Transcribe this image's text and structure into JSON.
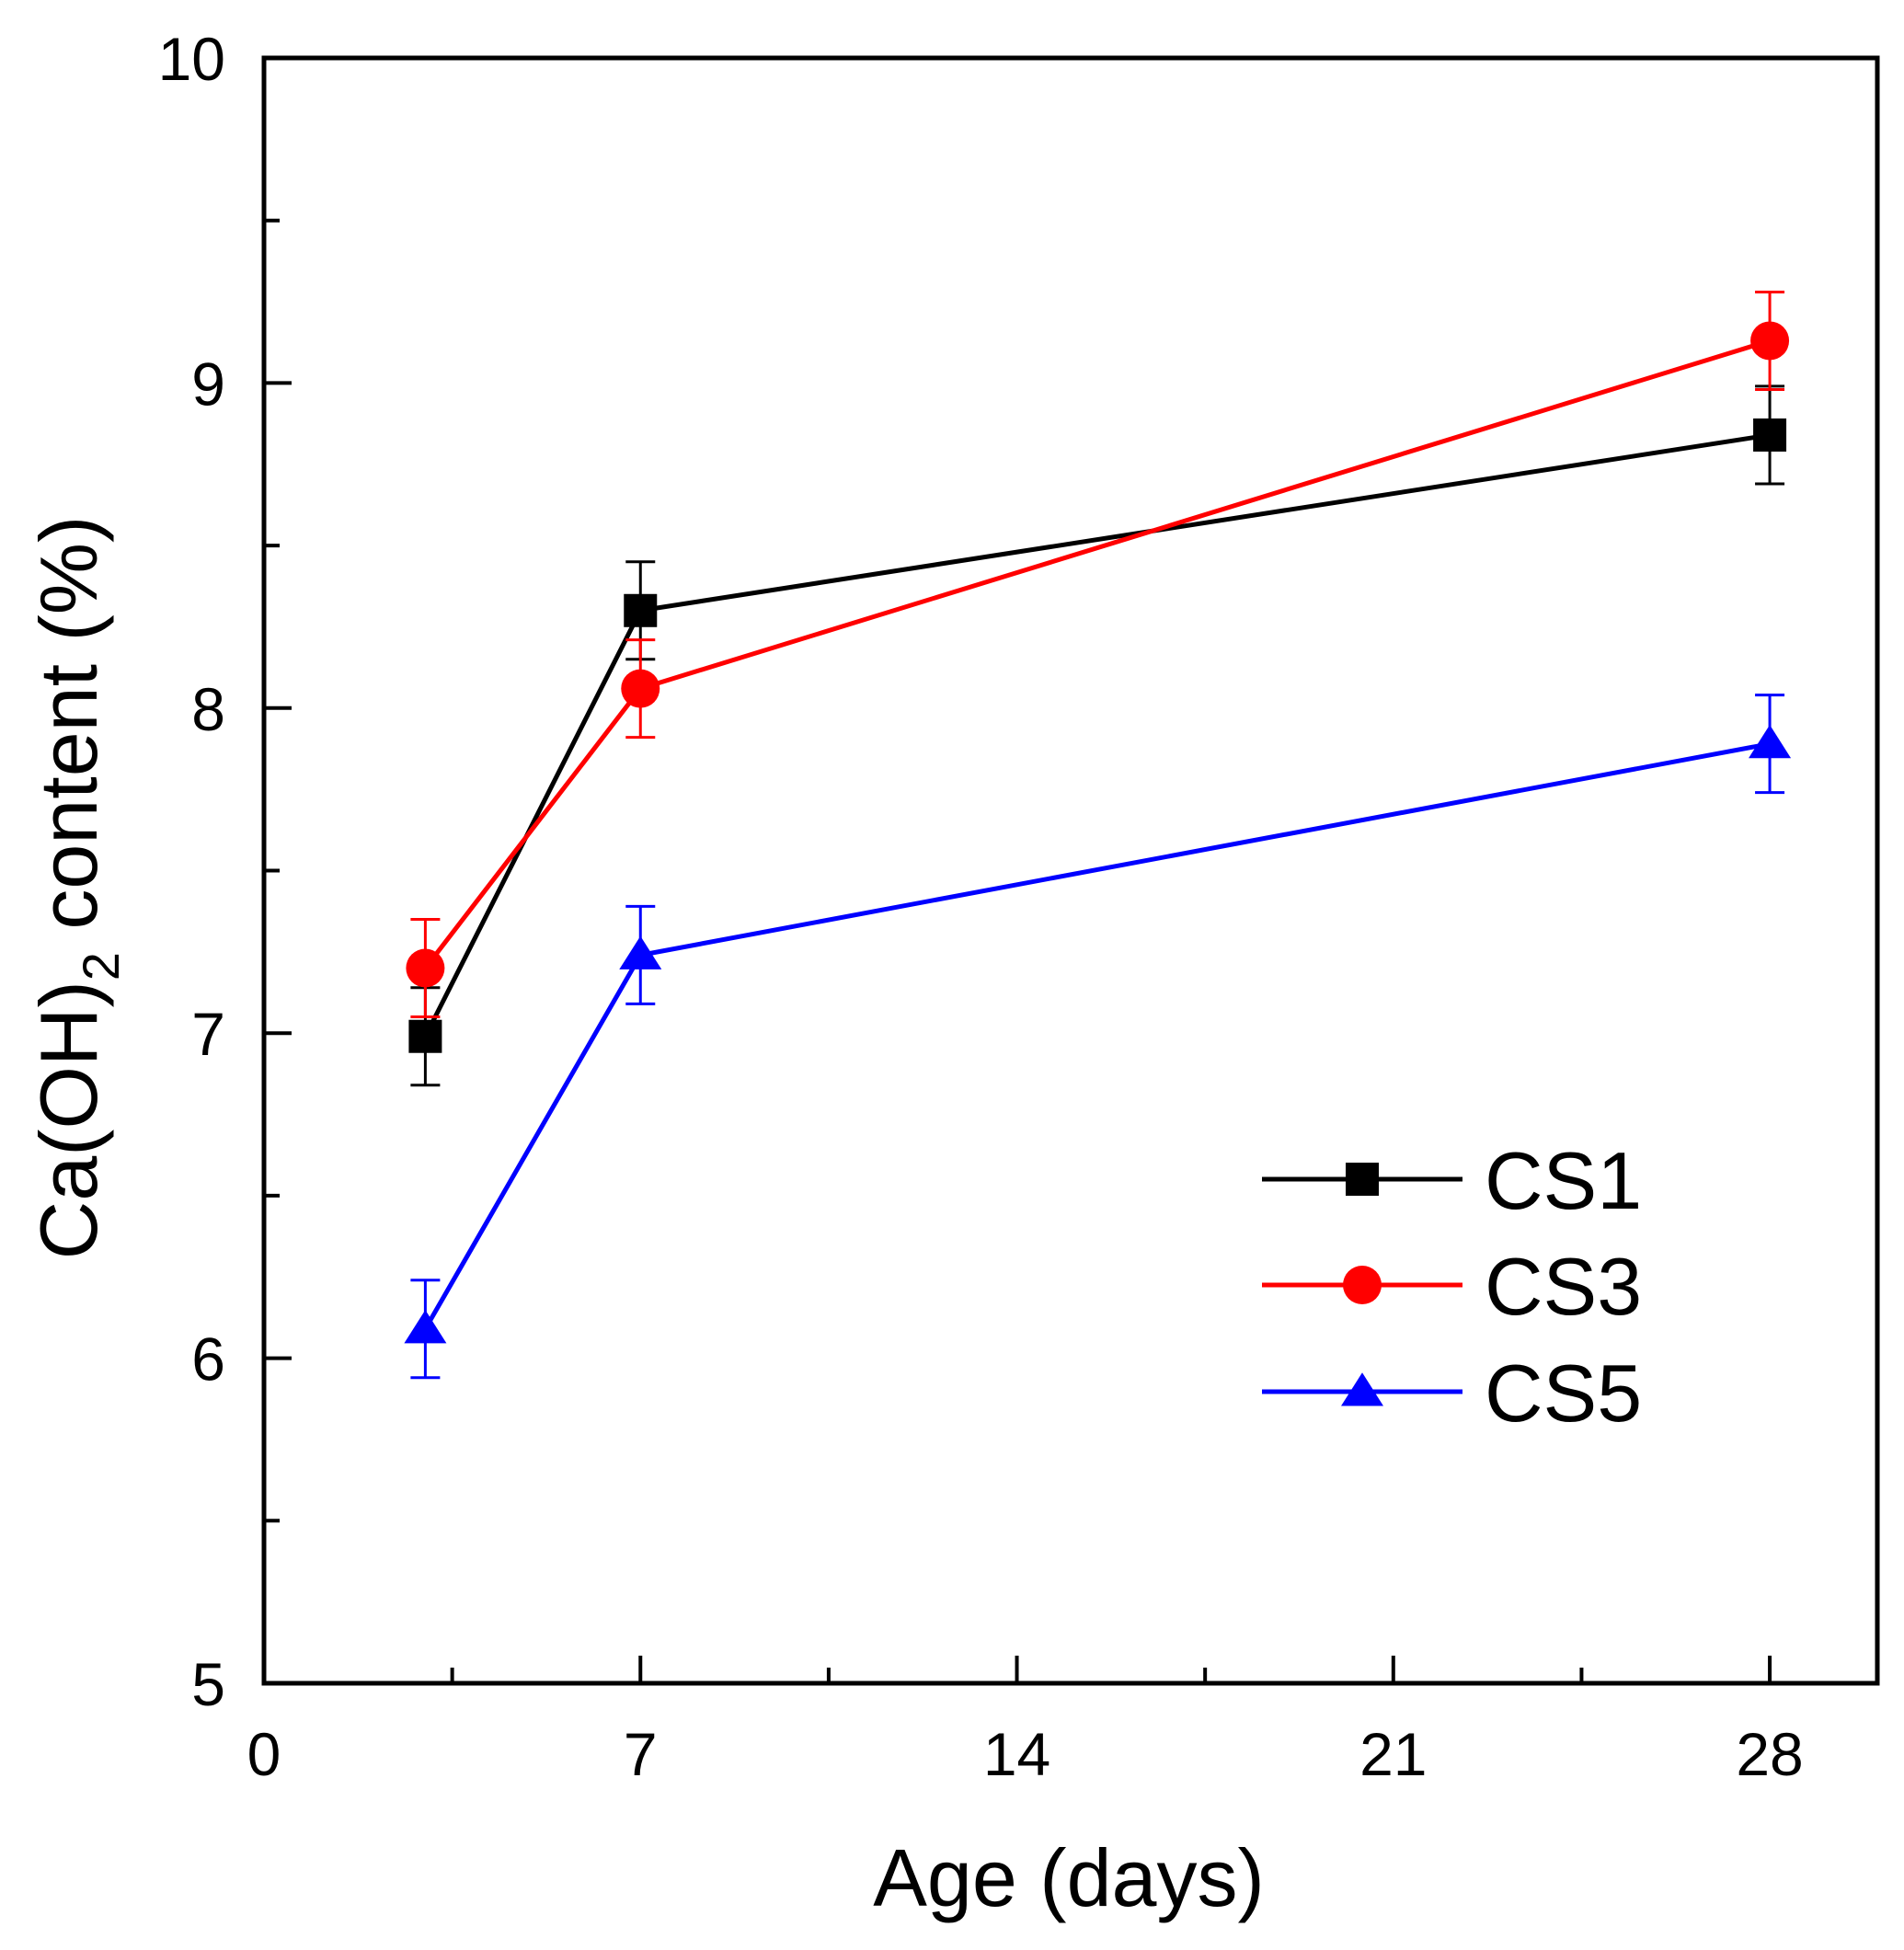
{
  "chart_data": {
    "type": "line",
    "title": "",
    "xlabel": "Age (days)",
    "ylabel_main": "Ca(OH)",
    "ylabel_sub": "2",
    "ylabel_tail": " content (%)",
    "xlim": [
      0,
      30
    ],
    "ylim": [
      5,
      10
    ],
    "x_ticks": [
      0,
      7,
      14,
      21,
      28
    ],
    "x_tick_labels": [
      "0",
      "7",
      "14",
      "21",
      "28"
    ],
    "x_minor_ticks": [
      3.5,
      10.5,
      17.5,
      24.5
    ],
    "y_ticks": [
      5,
      6,
      7,
      8,
      9,
      10
    ],
    "y_tick_labels": [
      "5",
      "6",
      "7",
      "8",
      "9",
      "10"
    ],
    "y_minor_ticks": [
      5.5,
      6.5,
      7.5,
      8.5,
      9.5
    ],
    "grid": false,
    "legend_position": "lower-right",
    "series": [
      {
        "name": "CS1",
        "color": "#000000",
        "marker": "square",
        "x": [
          3,
          7,
          28
        ],
        "y": [
          6.99,
          8.3,
          8.84
        ],
        "err": [
          0.15,
          0.15,
          0.15
        ]
      },
      {
        "name": "CS3",
        "color": "#ff0000",
        "marker": "circle",
        "x": [
          3,
          7,
          28
        ],
        "y": [
          7.2,
          8.06,
          9.13
        ],
        "err": [
          0.15,
          0.15,
          0.15
        ]
      },
      {
        "name": "CS5",
        "color": "#0000ff",
        "marker": "triangle",
        "x": [
          3,
          7,
          28
        ],
        "y": [
          6.09,
          7.24,
          7.89
        ],
        "err": [
          0.15,
          0.15,
          0.15
        ]
      }
    ]
  }
}
